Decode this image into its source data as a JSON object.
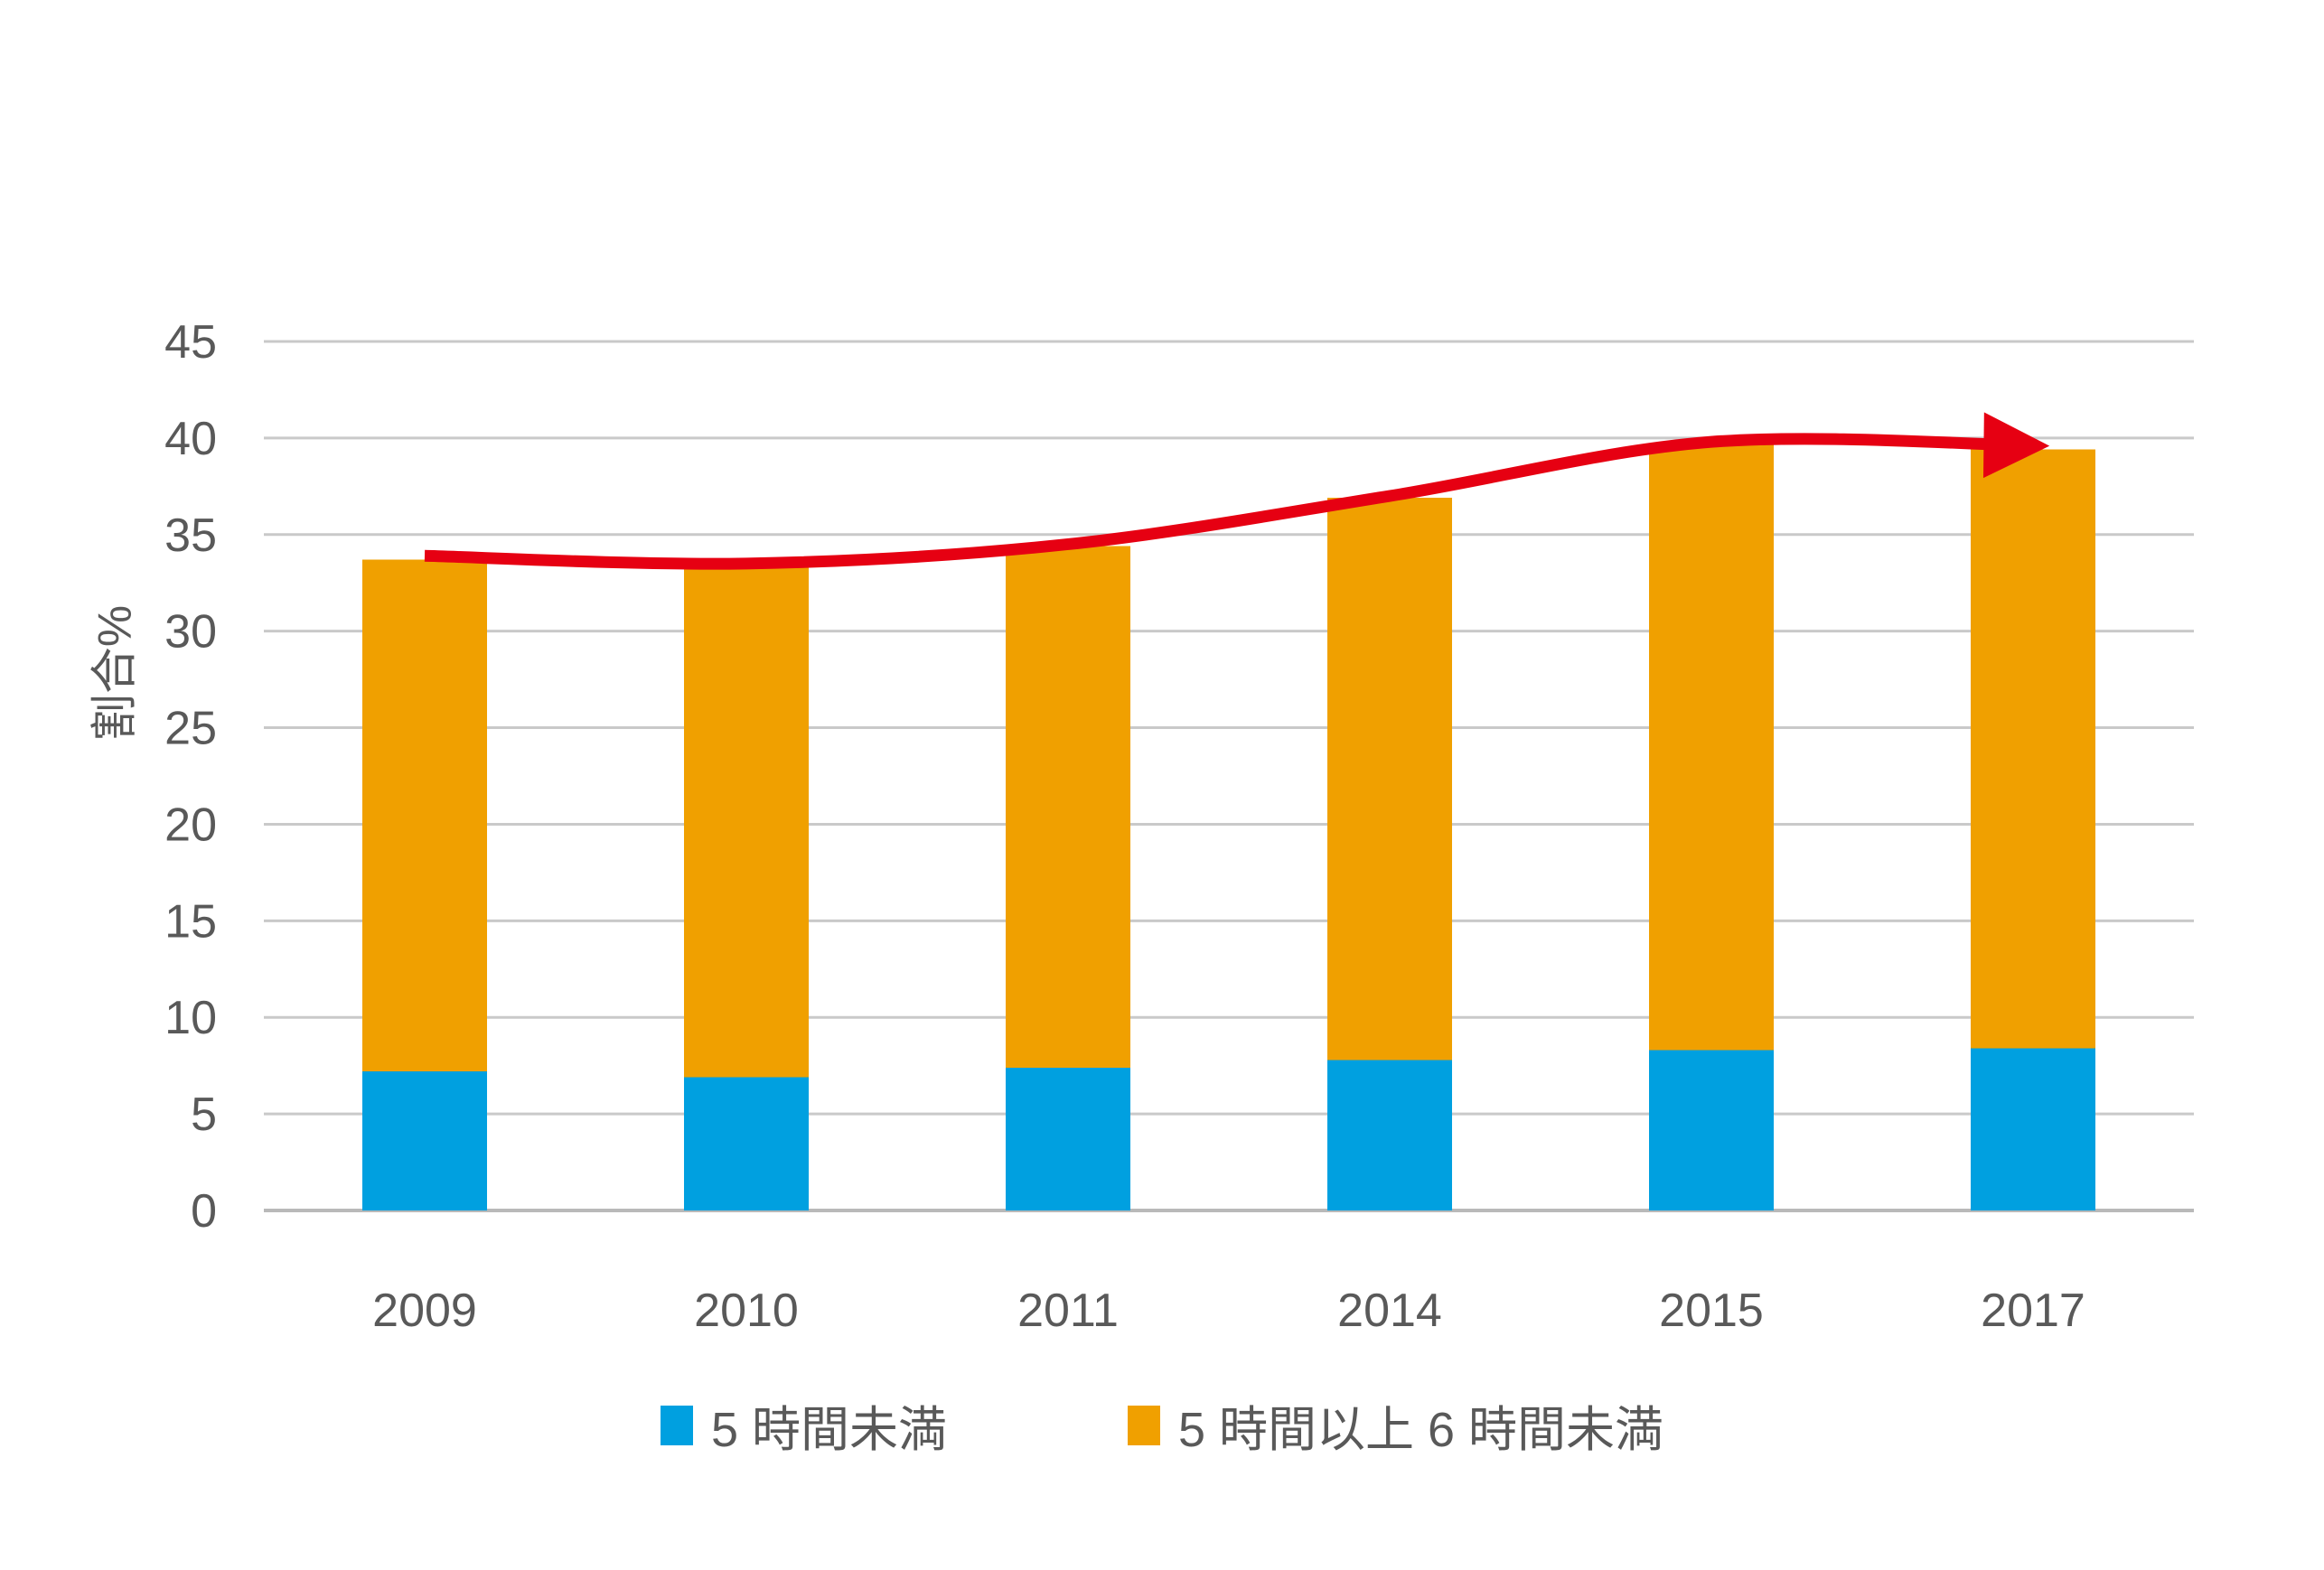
{
  "chart_data": {
    "type": "bar",
    "stacked": true,
    "title": "",
    "xlabel": "",
    "ylabel": "割合%",
    "ylim": [
      0,
      45
    ],
    "ytick_step": 5,
    "yticks": [
      "0",
      "5",
      "10",
      "15",
      "20",
      "25",
      "30",
      "35",
      "40",
      "45"
    ],
    "grid": true,
    "legend_position": "bottom",
    "categories": [
      "2009",
      "2010",
      "2011",
      "2014",
      "2015",
      "2017"
    ],
    "series": [
      {
        "name": "5 時間未満",
        "color": "#00A0E0",
        "values": [
          7.2,
          6.9,
          7.4,
          7.8,
          8.3,
          8.4
        ]
      },
      {
        "name": "5 時間以上 6 時間未満",
        "color": "#F0A000",
        "values": [
          26.5,
          26.5,
          27.0,
          29.1,
          31.4,
          31.0
        ]
      }
    ],
    "totals": [
      33.7,
      33.4,
      34.4,
      36.9,
      39.7,
      39.4
    ],
    "trend_line": {
      "color": "#E60012",
      "values": [
        33.9,
        33.5,
        34.5,
        37.0,
        39.8,
        39.6
      ],
      "arrow": true,
      "smooth": true
    },
    "colors": {
      "gridline": "#C9C9C9",
      "baseline": "#B9B9B9",
      "text": "#595959"
    }
  }
}
